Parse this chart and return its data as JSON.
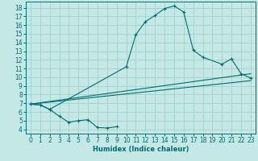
{
  "bg_color": "#c3e8e5",
  "grid_color": "#a8d4d0",
  "line_color": "#006e6e",
  "xlabel": "Humidex (Indice chaleur)",
  "xlim": [
    -0.5,
    23.5
  ],
  "ylim": [
    3.5,
    18.7
  ],
  "xticks": [
    0,
    1,
    2,
    3,
    4,
    5,
    6,
    7,
    8,
    9,
    10,
    11,
    12,
    13,
    14,
    15,
    16,
    17,
    18,
    19,
    20,
    21,
    22,
    23
  ],
  "yticks": [
    4,
    5,
    6,
    7,
    8,
    9,
    10,
    11,
    12,
    13,
    14,
    15,
    16,
    17,
    18
  ],
  "low_curve_x": [
    0,
    1,
    2,
    3,
    4,
    5,
    6,
    7,
    8,
    9
  ],
  "low_curve_y": [
    6.9,
    6.8,
    6.3,
    5.5,
    4.8,
    5.0,
    5.1,
    4.2,
    4.15,
    4.3
  ],
  "main_curve_x": [
    0,
    1,
    2,
    10,
    11,
    12,
    13,
    14,
    15,
    16,
    17,
    18,
    20,
    21,
    22,
    23
  ],
  "main_curve_y": [
    6.9,
    6.8,
    6.3,
    11.2,
    14.9,
    16.4,
    17.1,
    17.9,
    18.2,
    17.5,
    13.1,
    12.3,
    11.5,
    12.1,
    10.4,
    9.9
  ],
  "line1_x": [
    0,
    23
  ],
  "line1_y": [
    6.9,
    10.4
  ],
  "line2_x": [
    0,
    23
  ],
  "line2_y": [
    6.9,
    9.6
  ],
  "xlabel_fontsize": 6,
  "tick_fontsize": 5.5
}
